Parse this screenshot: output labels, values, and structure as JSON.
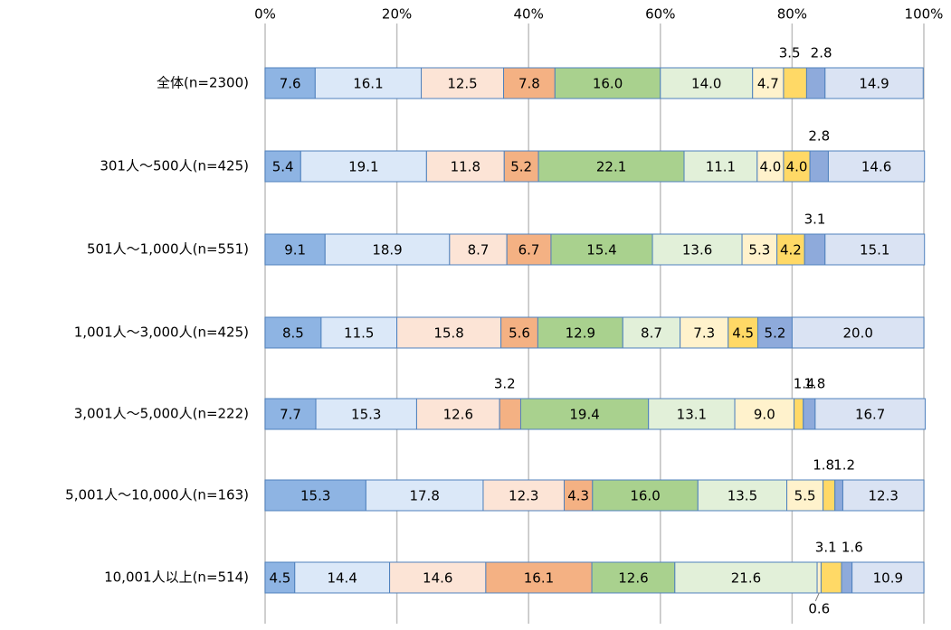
{
  "chart_data": {
    "type": "bar",
    "orientation": "horizontal",
    "stacked": true,
    "xlim": [
      0,
      100
    ],
    "x_ticks": [
      "0%",
      "20%",
      "40%",
      "60%",
      "80%",
      "100%"
    ],
    "grid": true,
    "legend": "none",
    "categories": [
      "全体(n=2300)",
      "301人～500人(n=425)",
      "501人～1,000人(n=551)",
      "1,001人～3,000人(n=425)",
      "3,001人～5,000人(n=222)",
      "5,001人～10,000人(n=163)",
      "10,001人以上(n=514)"
    ],
    "segment_colors": [
      "#8eb4e3",
      "#dbe8f8",
      "#fce4d6",
      "#f4b183",
      "#a9d18e",
      "#e2f0d9",
      "#fff2cc",
      "#ffd966",
      "#8eaadb",
      "#dae3f3"
    ],
    "series": [
      {
        "values": [
          7.6,
          5.4,
          9.1,
          8.5,
          7.7,
          15.3,
          4.5
        ]
      },
      {
        "values": [
          16.1,
          19.1,
          18.9,
          11.5,
          15.3,
          17.8,
          14.4
        ]
      },
      {
        "values": [
          12.5,
          11.8,
          8.7,
          15.8,
          12.6,
          12.3,
          14.6
        ]
      },
      {
        "values": [
          7.8,
          5.2,
          6.7,
          5.6,
          3.2,
          4.3,
          16.1
        ]
      },
      {
        "values": [
          16.0,
          22.1,
          15.4,
          12.9,
          19.4,
          16.0,
          12.6
        ]
      },
      {
        "values": [
          14.0,
          11.1,
          13.6,
          8.7,
          13.1,
          13.5,
          21.6
        ]
      },
      {
        "values": [
          4.7,
          4.0,
          5.3,
          7.3,
          9.0,
          5.5,
          0.6
        ]
      },
      {
        "values": [
          3.5,
          4.0,
          4.2,
          4.5,
          1.4,
          1.8,
          3.1
        ]
      },
      {
        "values": [
          2.8,
          2.8,
          3.1,
          5.2,
          1.8,
          1.2,
          1.6
        ]
      },
      {
        "values": [
          14.9,
          14.6,
          15.1,
          20.0,
          16.7,
          12.3,
          10.9
        ]
      }
    ],
    "labels": [
      [
        "7.6",
        "16.1",
        "12.5",
        "7.8",
        "16.0",
        "14.0",
        "4.7",
        "3.5",
        "2.8",
        "14.9"
      ],
      [
        "5.4",
        "19.1",
        "11.8",
        "5.2",
        "22.1",
        "11.1",
        "4.0",
        "4.0",
        "2.8",
        "14.6"
      ],
      [
        "9.1",
        "18.9",
        "8.7",
        "6.7",
        "15.4",
        "13.6",
        "5.3",
        "4.2",
        "3.1",
        "15.1"
      ],
      [
        "8.5",
        "11.5",
        "15.8",
        "5.6",
        "12.9",
        "8.7",
        "7.3",
        "4.5",
        "5.2",
        "20.0"
      ],
      [
        "7.7",
        "15.3",
        "12.6",
        "3.2",
        "19.4",
        "13.1",
        "9.0",
        "1.4",
        "1.8",
        "16.7"
      ],
      [
        "15.3",
        "17.8",
        "12.3",
        "4.3",
        "16.0",
        "13.5",
        "5.5",
        "1.8",
        "1.2",
        "12.3"
      ],
      [
        "4.5",
        "14.4",
        "14.6",
        "16.1",
        "12.6",
        "21.6",
        "0.6",
        "3.1",
        "1.6",
        "10.9"
      ]
    ],
    "outside_labels": [
      [
        "above",
        "above"
      ],
      [
        "above"
      ],
      [
        "above"
      ],
      [],
      [
        "above",
        "above",
        "above"
      ],
      [
        "above",
        "above"
      ],
      [
        "above",
        "above",
        "below"
      ]
    ],
    "outside_label_segments": [
      [
        7,
        8
      ],
      [
        8
      ],
      [
        8
      ],
      [],
      [
        3,
        7,
        8
      ],
      [
        7,
        8
      ],
      [
        7,
        8,
        6
      ]
    ]
  }
}
